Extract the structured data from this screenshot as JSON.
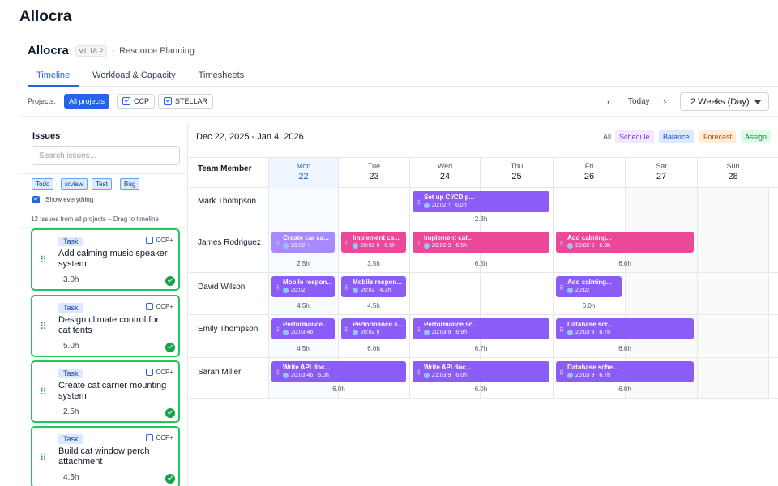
{
  "app_title": "Allocra",
  "header": {
    "brand": "Allocra",
    "version": "v1.18.2",
    "subtitle": "Resource Planning"
  },
  "tabs": [
    {
      "label": "Timeline",
      "active": true
    },
    {
      "label": "Workload & Capacity"
    },
    {
      "label": "Timesheets"
    }
  ],
  "toolbar": {
    "projects_label": "Projects:",
    "all_projects": "All projects",
    "project_ccp": "CCP",
    "project_stellar": "STELLAR",
    "prev": "‹",
    "today": "Today",
    "next": "›",
    "range": "2 Weeks (Day)"
  },
  "sidebar": {
    "title": "Issues",
    "search_placeholder": "Search issues...",
    "filters": [
      "Todo",
      "srview",
      "Test",
      "Bug"
    ],
    "show_everything": "Show everything",
    "count_text": "12 Issues from all projects – Drag to timeline",
    "issues": [
      {
        "type": "Task",
        "project": "CCP+",
        "name": "Add calming music speaker system",
        "hours": "3.0h"
      },
      {
        "type": "Task",
        "project": "CCP+",
        "name": "Design climate control for cat tents",
        "hours": "5.0h"
      },
      {
        "type": "Task",
        "project": "CCP+",
        "name": "Create cat carrier mounting system",
        "hours": "2.5h"
      },
      {
        "type": "Task",
        "project": "CCP+",
        "name": "Build cat window perch attachment",
        "hours": "4.5h"
      }
    ]
  },
  "timeline": {
    "date_range": "Dec 22, 2025 - Jan 4, 2026",
    "legend": {
      "all": "All",
      "schedule": "Schedule",
      "balance": "Balance",
      "forecast": "Forecast",
      "assign": "Assign"
    },
    "team_member_label": "Team Member",
    "days": [
      {
        "name": "Mon",
        "date": "22",
        "today": true
      },
      {
        "name": "Tue",
        "date": "23"
      },
      {
        "name": "Wed",
        "date": "24"
      },
      {
        "name": "Thu",
        "date": "25"
      },
      {
        "name": "Fri",
        "date": "26"
      },
      {
        "name": "Sat",
        "date": "27"
      },
      {
        "name": "Sun",
        "date": "28"
      }
    ],
    "rows": [
      {
        "member": "Mark Thompson",
        "bars": [
          {
            "day": 2,
            "span": 2,
            "title": "Set up CI/CD p...",
            "meta": "20:02 ↑",
            "hours": "6.0h",
            "color": "purple"
          }
        ],
        "totals": [
          {
            "day": 2,
            "value": "2.3h"
          }
        ]
      },
      {
        "member": "James Rodriguez",
        "bars": [
          {
            "day": 0,
            "span": 1,
            "title": "Create car ca...",
            "meta": "20:02 ↑",
            "hours": "",
            "color": "light"
          },
          {
            "day": 1,
            "span": 1,
            "title": "Implement ca...",
            "meta": "20:02 9",
            "hours": "6.5h",
            "color": "pink"
          },
          {
            "day": 2,
            "span": 2,
            "title": "Implement cat...",
            "meta": "20:02 9",
            "hours": "6.5h",
            "color": "pink"
          },
          {
            "day": 4,
            "span": 2,
            "title": "Add calming...",
            "meta": "20:02 9",
            "hours": "6.9h",
            "color": "pink"
          }
        ],
        "totals": [
          {
            "day": 0,
            "value": "2.5h"
          },
          {
            "day": 1,
            "value": "3.5h"
          },
          {
            "day": 2,
            "value": "6.5h"
          },
          {
            "day": 4,
            "value": "6.0h"
          }
        ]
      },
      {
        "member": "David Wilson",
        "bars": [
          {
            "day": 0,
            "span": 1,
            "title": "Mobile respon...",
            "meta": "20:02",
            "hours": "",
            "color": "purple"
          },
          {
            "day": 1,
            "span": 1,
            "title": "Mobile respon...",
            "meta": "20:02",
            "hours": "4.3h",
            "color": "purple"
          },
          {
            "day": 4,
            "span": 1,
            "title": "Add calming...",
            "meta": "20:02",
            "hours": "",
            "color": "purple"
          }
        ],
        "totals": [
          {
            "day": 0,
            "value": "4.5h"
          },
          {
            "day": 1,
            "value": "4.5h"
          },
          {
            "day": 4,
            "value": "6.0h"
          }
        ]
      },
      {
        "member": "Emily Thompson",
        "bars": [
          {
            "day": 0,
            "span": 1,
            "title": "Performance...",
            "meta": "20:03 46",
            "hours": "",
            "color": "purple"
          },
          {
            "day": 1,
            "span": 1,
            "title": "Performance s...",
            "meta": "20:02 9",
            "hours": "",
            "color": "purple"
          },
          {
            "day": 2,
            "span": 2,
            "title": "Performance sc...",
            "meta": "20:03 9",
            "hours": "6.9h",
            "color": "purple"
          },
          {
            "day": 4,
            "span": 2,
            "title": "Database scr...",
            "meta": "20:03 9",
            "hours": "6.7h",
            "color": "purple"
          }
        ],
        "totals": [
          {
            "day": 0,
            "value": "4.5h"
          },
          {
            "day": 1,
            "value": "6.0h"
          },
          {
            "day": 2,
            "value": "6.7h"
          },
          {
            "day": 4,
            "value": "6.0h"
          }
        ]
      },
      {
        "member": "Sarah Miller",
        "bars": [
          {
            "day": 0,
            "span": 2,
            "title": "Write API doc...",
            "meta": "20:03 46",
            "hours": "6.0h",
            "color": "purple"
          },
          {
            "day": 2,
            "span": 2,
            "title": "Write API doc...",
            "meta": "21:03 9",
            "hours": "6.0h",
            "color": "purple"
          },
          {
            "day": 4,
            "span": 2,
            "title": "Database sche...",
            "meta": "20:03 9",
            "hours": "6.7h",
            "color": "purple"
          }
        ],
        "totals": [
          {
            "day": 0,
            "value": "6.0h"
          },
          {
            "day": 2,
            "value": "6.0h"
          },
          {
            "day": 4,
            "value": "6.0h"
          }
        ]
      }
    ]
  },
  "colors": {
    "accent": "#2563eb",
    "bar_purple": "#8b5cf6",
    "bar_pink": "#ec4899",
    "issue_border": "#22c55e"
  }
}
